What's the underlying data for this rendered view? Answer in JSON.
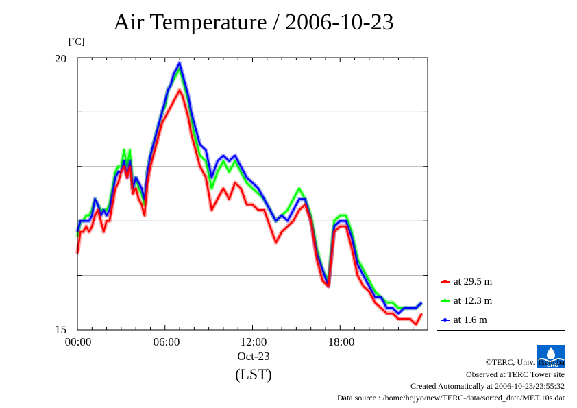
{
  "chart_data": {
    "type": "line",
    "title": "Air Temperature / 2006-10-23",
    "ylabel": "[˚C]",
    "ylim": [
      15,
      20
    ],
    "yticks": [
      "20",
      "15"
    ],
    "xlim_hours": [
      0,
      24
    ],
    "xticks": [
      {
        "hour": 0,
        "label": "00:00"
      },
      {
        "hour": 6,
        "label": "06:00"
      },
      {
        "hour": 12,
        "label": "12:00"
      },
      {
        "hour": 18,
        "label": "18:00"
      }
    ],
    "xdate_label": "Oct-23",
    "xunit_label": "(LST)",
    "grid": "horizontal",
    "legend_position": "bottom-right outside",
    "series": [
      {
        "name": "at 29.5 m",
        "color": "#ff0000",
        "x": [
          0,
          0.2,
          0.4,
          0.6,
          0.8,
          1.0,
          1.2,
          1.4,
          1.6,
          1.8,
          2.0,
          2.2,
          2.4,
          2.6,
          2.8,
          3.0,
          3.2,
          3.4,
          3.6,
          3.8,
          4.0,
          4.2,
          4.4,
          4.6,
          4.8,
          5.0,
          5.2,
          5.4,
          5.6,
          5.8,
          6.0,
          6.2,
          6.4,
          6.6,
          6.8,
          7.0,
          7.2,
          7.4,
          7.6,
          7.8,
          8.0,
          8.4,
          8.8,
          9.2,
          9.6,
          10.0,
          10.4,
          10.8,
          11.2,
          11.6,
          12.0,
          12.4,
          12.8,
          13.2,
          13.6,
          14.0,
          14.4,
          14.8,
          15.2,
          15.6,
          16.0,
          16.4,
          16.8,
          17.2,
          17.6,
          18.0,
          18.4,
          18.8,
          19.2,
          19.6,
          20.0,
          20.4,
          20.8,
          21.2,
          21.6,
          22.0,
          22.4,
          22.8,
          23.2,
          23.6
        ],
        "values": [
          16.4,
          16.8,
          16.8,
          16.9,
          16.8,
          16.9,
          17.1,
          17.2,
          17.0,
          16.8,
          17.0,
          17.0,
          17.3,
          17.6,
          17.7,
          17.9,
          18.0,
          17.8,
          18.0,
          17.5,
          17.6,
          17.4,
          17.3,
          17.1,
          17.7,
          18.0,
          18.2,
          18.4,
          18.6,
          18.8,
          18.9,
          19.0,
          19.1,
          19.2,
          19.3,
          19.4,
          19.3,
          19.1,
          18.9,
          18.6,
          18.4,
          18.0,
          17.8,
          17.2,
          17.4,
          17.6,
          17.4,
          17.7,
          17.6,
          17.3,
          17.3,
          17.2,
          17.2,
          16.9,
          16.6,
          16.8,
          16.9,
          17.0,
          17.2,
          17.3,
          17.0,
          16.3,
          15.9,
          15.8,
          16.8,
          16.9,
          16.9,
          16.5,
          16.0,
          15.8,
          15.7,
          15.5,
          15.4,
          15.3,
          15.3,
          15.2,
          15.2,
          15.2,
          15.1,
          15.3
        ]
      },
      {
        "name": "at 12.3 m",
        "color": "#00ff00",
        "x": [
          0,
          0.2,
          0.4,
          0.6,
          0.8,
          1.0,
          1.2,
          1.4,
          1.6,
          1.8,
          2.0,
          2.2,
          2.4,
          2.6,
          2.8,
          3.0,
          3.2,
          3.4,
          3.6,
          3.8,
          4.0,
          4.2,
          4.4,
          4.6,
          4.8,
          5.0,
          5.2,
          5.4,
          5.6,
          5.8,
          6.0,
          6.2,
          6.4,
          6.6,
          6.8,
          7.0,
          7.2,
          7.4,
          7.6,
          7.8,
          8.0,
          8.4,
          8.8,
          9.2,
          9.6,
          10.0,
          10.4,
          10.8,
          11.2,
          11.6,
          12.0,
          12.4,
          12.8,
          13.2,
          13.6,
          14.0,
          14.4,
          14.8,
          15.2,
          15.6,
          16.0,
          16.4,
          16.8,
          17.2,
          17.6,
          18.0,
          18.4,
          18.8,
          19.2,
          19.6,
          20.0,
          20.4,
          20.8,
          21.2,
          21.6,
          22.0,
          22.4,
          22.8,
          23.2,
          23.6
        ],
        "values": [
          16.7,
          17.0,
          17.0,
          17.1,
          17.1,
          17.2,
          17.4,
          17.3,
          17.2,
          17.2,
          17.2,
          17.3,
          17.6,
          17.9,
          18.0,
          18.0,
          18.3,
          18.0,
          18.3,
          17.6,
          17.8,
          17.6,
          17.5,
          17.3,
          17.9,
          18.2,
          18.4,
          18.6,
          18.8,
          19.0,
          19.1,
          19.4,
          19.5,
          19.6,
          19.7,
          19.8,
          19.6,
          19.4,
          19.2,
          18.9,
          18.6,
          18.2,
          18.1,
          17.6,
          17.9,
          18.1,
          17.9,
          18.1,
          17.9,
          17.7,
          17.6,
          17.5,
          17.4,
          17.2,
          17.0,
          17.1,
          17.2,
          17.4,
          17.6,
          17.4,
          17.1,
          16.5,
          16.1,
          15.9,
          17.0,
          17.1,
          17.1,
          16.8,
          16.3,
          16.1,
          15.9,
          15.7,
          15.6,
          15.5,
          15.5,
          15.4,
          15.4,
          15.4,
          15.4,
          15.5
        ]
      },
      {
        "name": "at 1.6 m",
        "color": "#0000ff",
        "x": [
          0,
          0.2,
          0.4,
          0.6,
          0.8,
          1.0,
          1.2,
          1.4,
          1.6,
          1.8,
          2.0,
          2.2,
          2.4,
          2.6,
          2.8,
          3.0,
          3.2,
          3.4,
          3.6,
          3.8,
          4.0,
          4.2,
          4.4,
          4.6,
          4.8,
          5.0,
          5.2,
          5.4,
          5.6,
          5.8,
          6.0,
          6.2,
          6.4,
          6.6,
          6.8,
          7.0,
          7.2,
          7.4,
          7.6,
          7.8,
          8.0,
          8.4,
          8.8,
          9.2,
          9.6,
          10.0,
          10.4,
          10.8,
          11.2,
          11.6,
          12.0,
          12.4,
          12.8,
          13.2,
          13.6,
          14.0,
          14.4,
          14.8,
          15.2,
          15.6,
          16.0,
          16.4,
          16.8,
          17.2,
          17.6,
          18.0,
          18.4,
          18.8,
          19.2,
          19.6,
          20.0,
          20.4,
          20.8,
          21.2,
          21.6,
          22.0,
          22.4,
          22.8,
          23.2,
          23.6
        ],
        "values": [
          16.8,
          17.0,
          17.0,
          17.0,
          17.0,
          17.1,
          17.4,
          17.3,
          17.1,
          17.2,
          17.1,
          17.2,
          17.5,
          17.8,
          17.9,
          17.9,
          18.1,
          17.8,
          18.1,
          17.6,
          17.8,
          17.7,
          17.6,
          17.4,
          17.9,
          18.2,
          18.4,
          18.6,
          18.8,
          19.0,
          19.2,
          19.4,
          19.5,
          19.7,
          19.8,
          19.9,
          19.7,
          19.5,
          19.3,
          19.0,
          18.8,
          18.4,
          18.3,
          17.8,
          18.1,
          18.2,
          18.1,
          18.2,
          18.0,
          17.8,
          17.7,
          17.6,
          17.4,
          17.2,
          17.0,
          17.1,
          17.0,
          17.2,
          17.4,
          17.4,
          17.0,
          16.4,
          16.1,
          15.8,
          16.9,
          17.0,
          17.0,
          16.7,
          16.2,
          16.0,
          15.8,
          15.6,
          15.6,
          15.4,
          15.4,
          15.3,
          15.4,
          15.4,
          15.4,
          15.5
        ]
      }
    ]
  },
  "legend": {
    "items": [
      "at 29.5 m",
      "at 12.3 m",
      "at 1.6 m"
    ]
  },
  "footer": {
    "copyright": "©TERC, Univ. Tsukuba",
    "observed": "Observed at TERC Tower site",
    "created": "Created Automatically at 2006-10-23/23:55:32",
    "source": "Data source : /home/hojyo/new/TERC-data/sorted_data/MET.10s.dat"
  },
  "logo": {
    "text": "TERC",
    "color": "#0066cc",
    "icon": "terc-logo-icon"
  }
}
